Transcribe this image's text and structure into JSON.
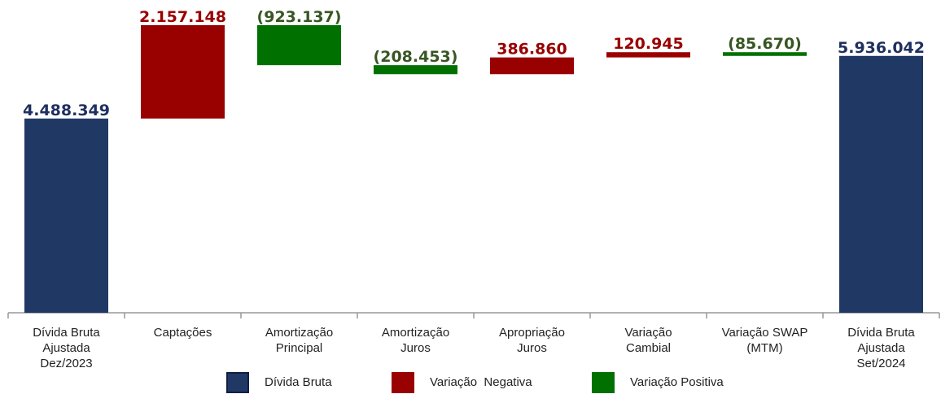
{
  "chart_data": {
    "type": "waterfall",
    "categories": [
      "Dívida Bruta\nAjustada\nDez/2023",
      "Captações",
      "Amortização\nPrincipal",
      "Amortização\nJuros",
      "Apropriação\nJuros",
      "Variação\nCambial",
      "Variação SWAP\n(MTM)",
      "Dívida Bruta\nAjustada\nSet/2024"
    ],
    "values": [
      4488349,
      2157148,
      -923137,
      -208453,
      386860,
      120945,
      -85670,
      5936042
    ],
    "value_labels": [
      "4.488.349",
      "2.157.148",
      "(923.137)",
      "(208.453)",
      "386.860",
      "120.945",
      "(85.670)",
      "5.936.042"
    ],
    "is_total": [
      true,
      false,
      false,
      false,
      false,
      false,
      false,
      true
    ],
    "series": [
      {
        "name": "Dívida Bruta",
        "color": "#203864",
        "label_color": "#1f2f5f"
      },
      {
        "name": "Variação  Negativa",
        "color": "#990000",
        "label_color": "#990000"
      },
      {
        "name": "Variação Positiva",
        "color": "#007000",
        "label_color": "#375623"
      }
    ]
  }
}
